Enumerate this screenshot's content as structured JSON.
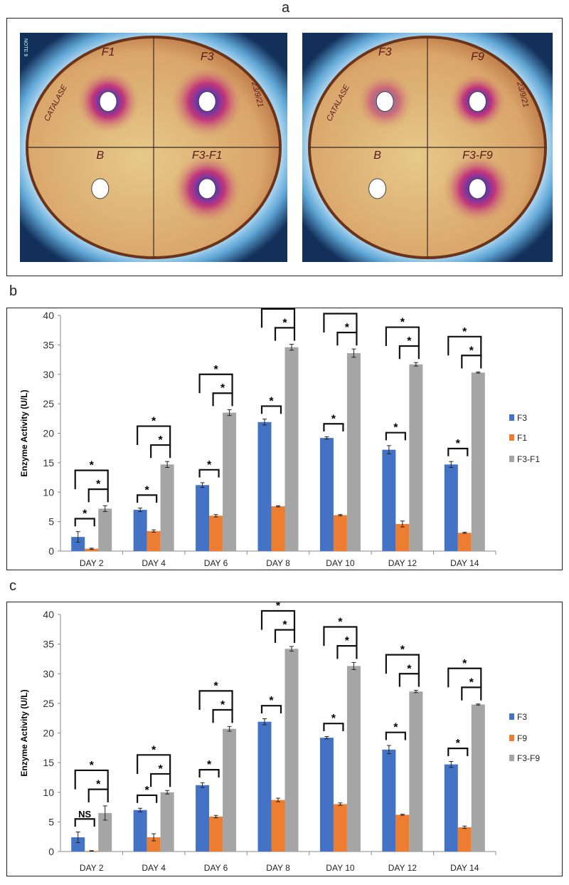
{
  "panel_labels": {
    "a": "a",
    "b": "b",
    "c": "c"
  },
  "plates": [
    {
      "quadrants": [
        "F1",
        "F3",
        "B",
        "F3-F1"
      ],
      "side_text": "CATALASE",
      "date_text": "23/9/21",
      "watermark": "NOTE 9"
    },
    {
      "quadrants": [
        "F3",
        "F9",
        "B",
        "F3-F9"
      ],
      "side_text": "CATALASE",
      "date_text": "23/9/21"
    }
  ],
  "colors": {
    "F3": "#4472C4",
    "second": "#ED7D31",
    "combo": "#A5A5A5"
  },
  "chart_data": [
    {
      "type": "bar",
      "panel": "b",
      "ylabel": "Enzyme Activity (U/L)",
      "xlabel": "",
      "ylim": [
        0,
        40
      ],
      "yticks": [
        "0",
        "5",
        "10",
        "15",
        "20",
        "25",
        "30",
        "35",
        "40"
      ],
      "categories": [
        "DAY 2",
        "DAY 4",
        "DAY 6",
        "DAY 8",
        "DAY 10",
        "DAY 12",
        "DAY 14"
      ],
      "legend_position": "right",
      "series": [
        {
          "name": "F3",
          "values": [
            2.4,
            7.0,
            11.2,
            21.9,
            19.2,
            17.2,
            14.7
          ],
          "errors": [
            0.9,
            0.3,
            0.4,
            0.5,
            0.2,
            0.7,
            0.5
          ]
        },
        {
          "name": "F1",
          "values": [
            0.4,
            3.4,
            6.0,
            7.6,
            6.1,
            4.6,
            3.1
          ],
          "errors": [
            0.1,
            0.2,
            0.2,
            0.1,
            0.1,
            0.5,
            0.1
          ]
        },
        {
          "name": "F3-F1",
          "values": [
            7.2,
            14.7,
            23.5,
            34.6,
            33.6,
            31.7,
            30.3
          ],
          "errors": [
            0.5,
            0.5,
            0.5,
            0.5,
            0.7,
            0.3,
            0.1
          ]
        }
      ],
      "significance": {
        "s1_vs_s2": [
          "*",
          "*",
          "*",
          "*",
          "*",
          "*",
          "*"
        ],
        "s2_vs_s3": [
          "*",
          "*",
          "*",
          "*",
          "*",
          "*",
          "*"
        ],
        "s1_vs_s3": [
          "*",
          "*",
          "*",
          "*",
          "*",
          "*",
          "*"
        ]
      }
    },
    {
      "type": "bar",
      "panel": "c",
      "ylabel": "Enzyme Activity (U/L)",
      "xlabel": "",
      "ylim": [
        0,
        40
      ],
      "yticks": [
        "0",
        "5",
        "10",
        "15",
        "20",
        "25",
        "30",
        "35",
        "40"
      ],
      "categories": [
        "DAY 2",
        "DAY 4",
        "DAY 6",
        "DAY 8",
        "DAY 10",
        "DAY 12",
        "DAY 14"
      ],
      "legend_position": "right",
      "series": [
        {
          "name": "F3",
          "values": [
            2.4,
            7.0,
            11.2,
            21.9,
            19.2,
            17.2,
            14.7
          ],
          "errors": [
            0.9,
            0.3,
            0.4,
            0.5,
            0.2,
            0.7,
            0.5
          ]
        },
        {
          "name": "F9",
          "values": [
            0.1,
            2.4,
            5.9,
            8.7,
            8.0,
            6.2,
            4.1
          ],
          "errors": [
            0.05,
            0.6,
            0.2,
            0.3,
            0.2,
            0.1,
            0.2
          ]
        },
        {
          "name": "F3-F9",
          "values": [
            6.5,
            10.0,
            20.7,
            34.2,
            31.3,
            27.0,
            24.8
          ],
          "errors": [
            1.2,
            0.3,
            0.4,
            0.4,
            0.6,
            0.2,
            0.1
          ]
        }
      ],
      "significance": {
        "s1_vs_s2": [
          "NS",
          "*",
          "*",
          "*",
          "*",
          "*",
          "*"
        ],
        "s2_vs_s3": [
          "*",
          "*",
          "*",
          "*",
          "*",
          "*",
          "*"
        ],
        "s1_vs_s3": [
          "*",
          "*",
          "*",
          "*",
          "*",
          "*",
          "*"
        ]
      }
    }
  ]
}
